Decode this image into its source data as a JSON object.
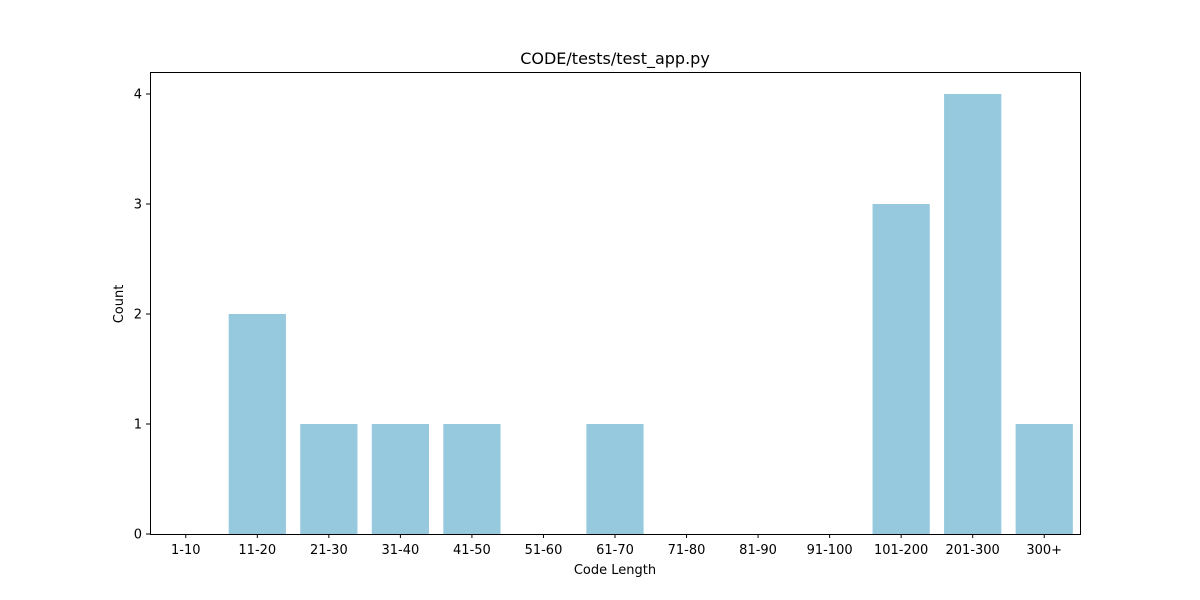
{
  "chart_data": {
    "type": "bar",
    "title": "CODE/tests/test_app.py",
    "xlabel": "Code Length",
    "ylabel": "Count",
    "categories": [
      "1-10",
      "11-20",
      "21-30",
      "31-40",
      "41-50",
      "51-60",
      "61-70",
      "71-80",
      "81-90",
      "91-100",
      "101-200",
      "201-300",
      "300+"
    ],
    "values": [
      0,
      2,
      1,
      1,
      1,
      0,
      1,
      0,
      0,
      0,
      3,
      4,
      1
    ],
    "ylim": [
      0,
      4.2
    ],
    "yticks": [
      "0",
      "1",
      "2",
      "3",
      "4"
    ],
    "grid": false,
    "colors": {
      "bar": "#96c9de",
      "axis": "#000000"
    }
  }
}
